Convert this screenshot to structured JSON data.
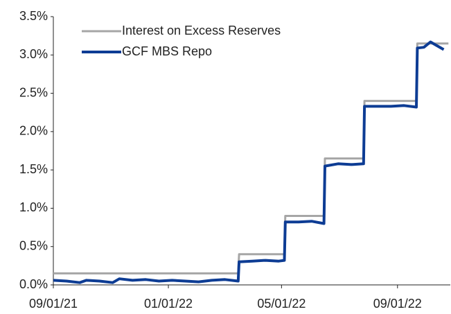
{
  "chart_data": {
    "type": "line",
    "series": [
      {
        "name": "Interest on Excess Reserves",
        "color": "#a6a6a6",
        "x": [
          "09/01/21",
          "03/16/22",
          "03/17/22",
          "05/04/22",
          "05/05/22",
          "06/15/22",
          "06/16/22",
          "07/27/22",
          "07/28/22",
          "09/21/22",
          "09/22/22",
          "10/25/22"
        ],
        "values": [
          0.15,
          0.15,
          0.4,
          0.4,
          0.9,
          0.9,
          1.65,
          1.65,
          2.4,
          2.4,
          3.15,
          3.15
        ]
      },
      {
        "name": "GCF MBS Repo",
        "color": "#0d3c94",
        "x": [
          "09/01/21",
          "09/15/21",
          "09/29/21",
          "10/06/21",
          "10/20/21",
          "11/03/21",
          "11/10/21",
          "11/24/21",
          "12/08/21",
          "12/22/21",
          "01/05/22",
          "01/19/22",
          "02/02/22",
          "02/16/22",
          "03/02/22",
          "03/16/22",
          "03/17/22",
          "03/31/22",
          "04/14/22",
          "04/28/22",
          "05/04/22",
          "05/05/22",
          "05/19/22",
          "06/02/22",
          "06/15/22",
          "06/16/22",
          "06/30/22",
          "07/14/22",
          "07/27/22",
          "07/28/22",
          "08/11/22",
          "08/25/22",
          "09/08/22",
          "09/21/22",
          "09/22/22",
          "09/29/22",
          "10/06/22",
          "10/13/22",
          "10/20/22"
        ],
        "values": [
          0.06,
          0.05,
          0.03,
          0.06,
          0.05,
          0.03,
          0.08,
          0.06,
          0.07,
          0.05,
          0.06,
          0.05,
          0.04,
          0.06,
          0.07,
          0.05,
          0.3,
          0.31,
          0.32,
          0.31,
          0.32,
          0.82,
          0.82,
          0.83,
          0.8,
          1.55,
          1.58,
          1.57,
          1.58,
          2.33,
          2.33,
          2.33,
          2.34,
          2.32,
          3.09,
          3.1,
          3.17,
          3.12,
          3.07
        ]
      }
    ],
    "xlim": [
      "09/01/21",
      "10/27/22"
    ],
    "xticks": [
      "09/01/21",
      "01/01/22",
      "05/01/22",
      "09/01/22"
    ],
    "ylim": [
      0,
      3.5
    ],
    "yticks": [
      {
        "value": 0,
        "label": "0.0%"
      },
      {
        "value": 0.5,
        "label": "0.5%"
      },
      {
        "value": 1,
        "label": "1.0%"
      },
      {
        "value": 1.5,
        "label": "1.5%"
      },
      {
        "value": 2,
        "label": "2.0%"
      },
      {
        "value": 2.5,
        "label": "2.5%"
      },
      {
        "value": 3,
        "label": "3.0%"
      },
      {
        "value": 3.5,
        "label": "3.5%"
      }
    ],
    "legend": "upper left"
  }
}
